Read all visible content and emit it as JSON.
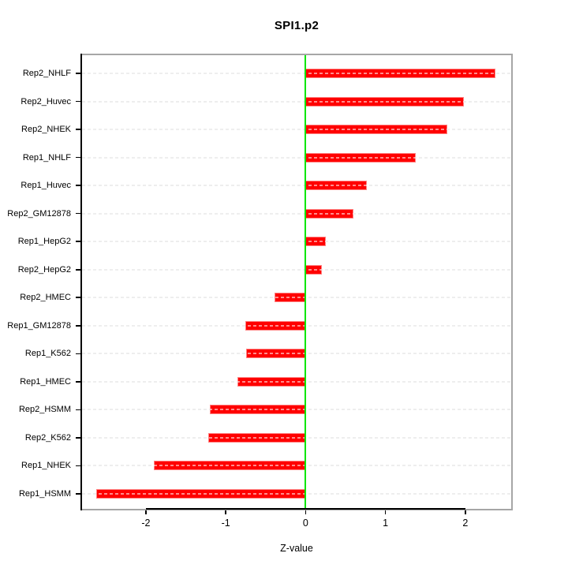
{
  "title": "SPI1.p2",
  "chart_data": {
    "type": "bar",
    "orientation": "horizontal",
    "title": "SPI1.p2",
    "xlabel": "Z-value",
    "ylabel": "",
    "categories": [
      "Rep2_NHLF",
      "Rep2_Huvec",
      "Rep2_NHEK",
      "Rep1_NHLF",
      "Rep1_Huvec",
      "Rep2_GM12878",
      "Rep1_HepG2",
      "Rep2_HepG2",
      "Rep2_HMEC",
      "Rep1_GM12878",
      "Rep1_K562",
      "Rep1_HMEC",
      "Rep2_HSMM",
      "Rep2_K562",
      "Rep1_NHEK",
      "Rep1_HSMM"
    ],
    "values": [
      2.38,
      1.98,
      1.77,
      1.38,
      0.77,
      0.6,
      0.25,
      0.2,
      -0.39,
      -0.75,
      -0.74,
      -0.85,
      -1.2,
      -1.22,
      -1.9,
      -2.62
    ],
    "xlim": [
      -2.8,
      2.575
    ],
    "x_ticks": [
      -2,
      -1,
      0,
      1,
      2
    ],
    "x_tick_labels": [
      "-2",
      "-1",
      "0",
      "1",
      "2"
    ],
    "grid": "horizontal dashed line per category",
    "legend": "none",
    "bar_color": "#ff0000",
    "bar_border_color": "#ff8080",
    "zero_line_color": "#00e600",
    "gridline_color": "#d9d9d9",
    "box_color": "#a6a6a6",
    "text_color": "#000000"
  }
}
